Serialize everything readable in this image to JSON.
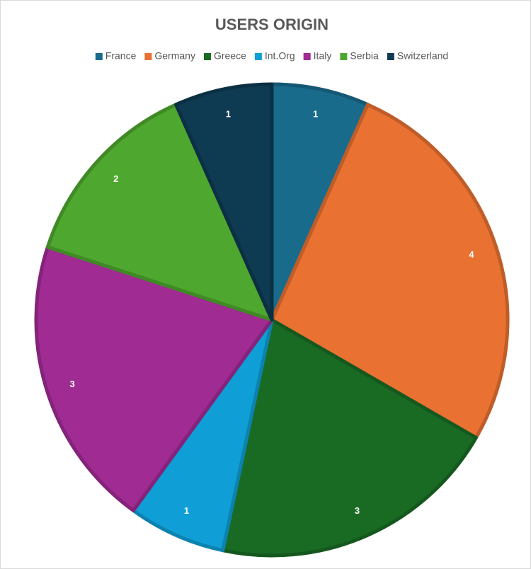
{
  "chart_data": {
    "type": "pie",
    "title": "USERS ORIGIN",
    "categories": [
      "France",
      "Germany",
      "Greece",
      "Int.Org",
      "Italy",
      "Serbia",
      "Switzerland"
    ],
    "values": [
      1,
      4,
      3,
      1,
      3,
      2,
      1
    ],
    "colors": [
      "#196b8c",
      "#e97132",
      "#196b24",
      "#0f9ed5",
      "#a02b93",
      "#4ea72e",
      "#0e3a52"
    ],
    "legend": "top"
  }
}
